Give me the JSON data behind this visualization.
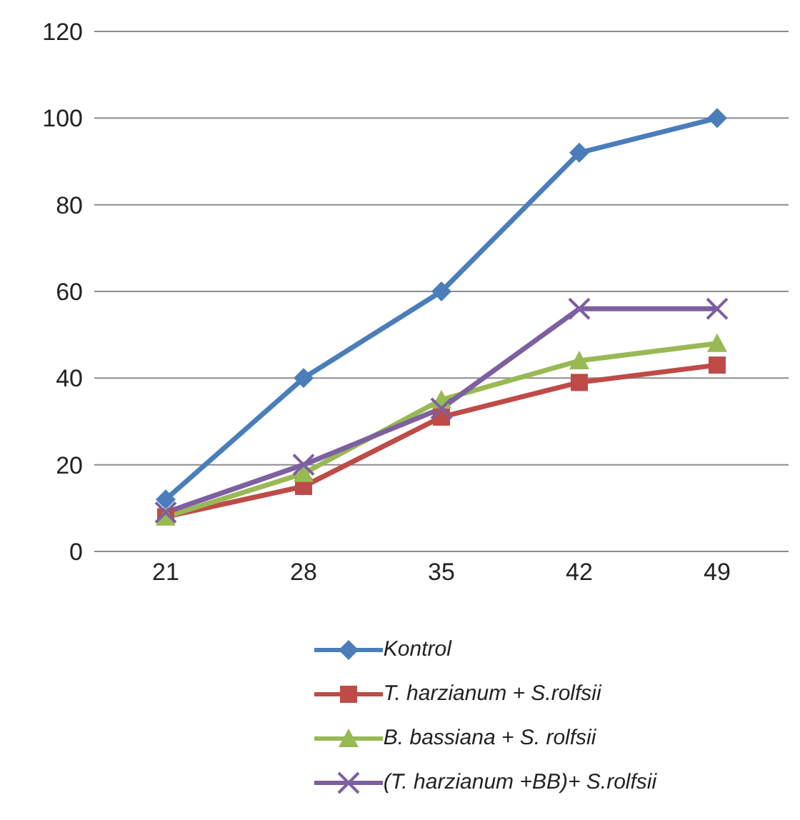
{
  "chart_data": {
    "type": "line",
    "categories": [
      "21",
      "28",
      "35",
      "42",
      "49"
    ],
    "series": [
      {
        "name": "Kontrol",
        "color": "#4a7ebb",
        "marker": "diamond",
        "values": [
          12,
          40,
          60,
          92,
          100
        ]
      },
      {
        "name": "T. harzianum + S.rolfsii",
        "color": "#be4b48",
        "marker": "square",
        "values": [
          8,
          15,
          31,
          39,
          43
        ]
      },
      {
        "name": "B. bassiana + S. rolfsii",
        "color": "#98b954",
        "marker": "triangle",
        "values": [
          8,
          18,
          35,
          44,
          48
        ]
      },
      {
        "name": "(T. harzianum +BB)+ S.rolfsii",
        "color": "#7d60a0",
        "marker": "cross",
        "values": [
          9,
          20,
          33,
          56,
          56
        ]
      }
    ],
    "ylim": [
      0,
      120
    ],
    "yticks": [
      0,
      20,
      40,
      60,
      80,
      100,
      120
    ],
    "grid": "y",
    "legend": "bottom"
  }
}
